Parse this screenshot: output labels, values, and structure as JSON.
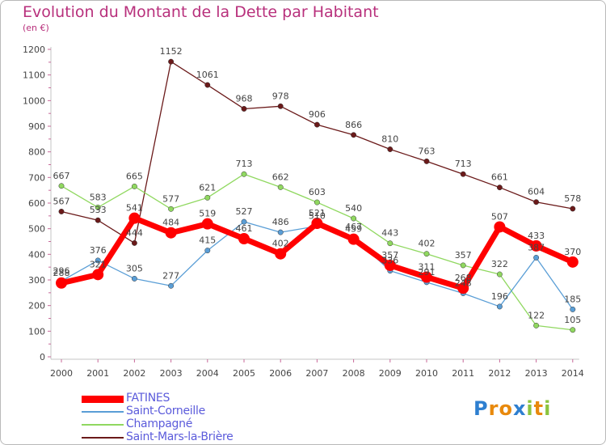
{
  "title": "Evolution du Montant de la Dette par Habitant",
  "unit": "(en €)",
  "logo": {
    "letters": [
      {
        "ch": "P",
        "color": "#2e7fd0"
      },
      {
        "ch": "r",
        "color": "#e8890c"
      },
      {
        "ch": "o",
        "color": "#e8890c"
      },
      {
        "ch": "x",
        "color": "#2e7fd0"
      },
      {
        "ch": "i",
        "color": "#8bc43f"
      },
      {
        "ch": "t",
        "color": "#e8890c"
      },
      {
        "ch": "i",
        "color": "#8bc43f"
      }
    ]
  },
  "chart_data": {
    "type": "line",
    "x": [
      "2000",
      "2001",
      "2002",
      "2003",
      "2004",
      "2005",
      "2006",
      "2007",
      "2008",
      "2009",
      "2010",
      "2011",
      "2012",
      "2013",
      "2014"
    ],
    "ylim": [
      0,
      1200
    ],
    "yticks": [
      0,
      100,
      200,
      300,
      400,
      500,
      600,
      700,
      800,
      900,
      1000,
      1100,
      1200
    ],
    "grid": false,
    "legend_position": "bottom-left",
    "series": [
      {
        "name": "Saint-Mars-la-Brière",
        "color": "#6b1a1a",
        "values": [
          567,
          533,
          444,
          1152,
          1061,
          968,
          978,
          906,
          866,
          810,
          763,
          713,
          661,
          604,
          578
        ],
        "labels": [
          "567",
          "533",
          "444",
          "1152",
          "1061",
          "968",
          "978",
          "906",
          "866",
          "810",
          "763",
          "713",
          "661",
          "604",
          "578"
        ]
      },
      {
        "name": "Champagné",
        "color": "#90d860",
        "values": [
          667,
          583,
          665,
          577,
          621,
          713,
          662,
          603,
          540,
          443,
          402,
          357,
          322,
          122,
          105
        ],
        "labels": [
          "667",
          "583",
          "665",
          "577",
          "621",
          "713",
          "662",
          "603",
          "540",
          "443",
          "402",
          "357",
          "322",
          "122",
          "105"
        ]
      },
      {
        "name": "Saint-Corneille",
        "color": "#5a9ed6",
        "values": [
          296,
          376,
          305,
          277,
          415,
          527,
          486,
          510,
          467,
          336,
          291,
          248,
          196,
          387,
          185
        ],
        "labels": [
          "296",
          "376",
          "305",
          "277",
          "415",
          "527",
          "486",
          "510",
          "467",
          "336",
          "291",
          "248",
          "196",
          "387",
          "185"
        ]
      },
      {
        "name": "FATINES",
        "color": "#ff0000",
        "values": [
          288,
          321,
          541,
          484,
          519,
          461,
          402,
          521,
          459,
          357,
          311,
          268,
          507,
          433,
          370
        ],
        "labels": [
          "288",
          "321",
          "541",
          "484",
          "519",
          "461",
          "402",
          "521",
          "459",
          "357",
          "311",
          "268",
          "507",
          "433",
          "370"
        ]
      }
    ]
  }
}
